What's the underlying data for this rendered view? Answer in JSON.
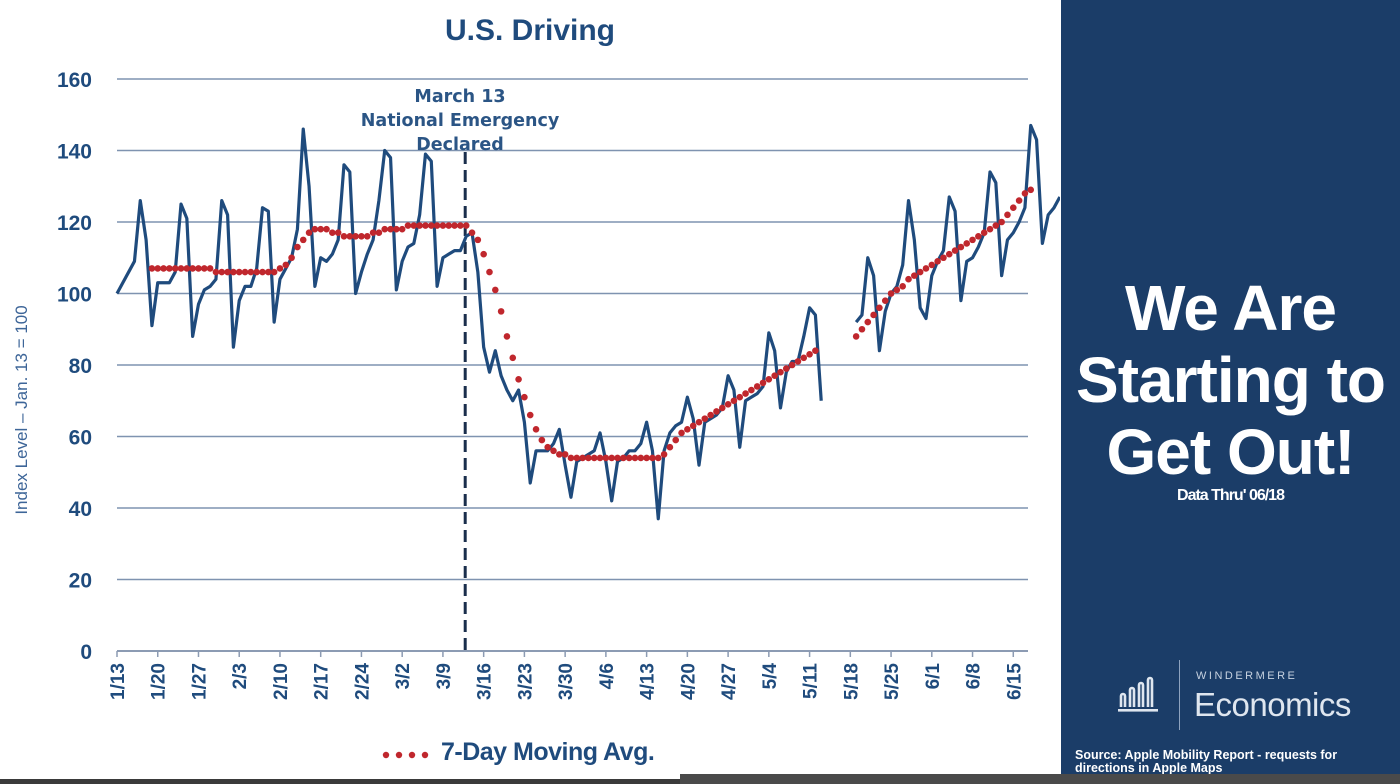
{
  "chart_data": {
    "type": "line",
    "title": "U.S. Driving",
    "xlabel": "",
    "ylabel": "Index Level – Jan. 13 = 100",
    "ylim": [
      0,
      160
    ],
    "yticks": [
      0,
      20,
      40,
      60,
      80,
      100,
      120,
      140,
      160
    ],
    "grid": true,
    "x_start": "1/13",
    "x_end": "6/18",
    "x_tick_labels": [
      "1/13",
      "1/20",
      "1/27",
      "2/3",
      "2/10",
      "2/17",
      "2/24",
      "3/2",
      "3/9",
      "3/16",
      "3/23",
      "3/30",
      "4/6",
      "4/13",
      "4/20",
      "4/27",
      "5/4",
      "5/11",
      "5/18",
      "5/25",
      "6/1",
      "6/8",
      "6/15"
    ],
    "annotation": {
      "label_lines": [
        "March 13",
        "National Emergency",
        "Declared"
      ],
      "x_day_index": 60
    },
    "legend": {
      "position": "bottom-center",
      "entries": [
        {
          "label": "7-Day Moving Avg.",
          "style": "dotted",
          "color": "#c0272d"
        }
      ]
    },
    "series": [
      {
        "name": "Daily Driving Index",
        "color": "#1f4b7d",
        "style": "solid",
        "values": [
          100,
          103,
          106,
          109,
          126,
          115,
          91,
          103,
          103,
          103,
          106,
          125,
          121,
          88,
          97,
          101,
          102,
          104,
          126,
          122,
          85,
          98,
          102,
          102,
          107,
          124,
          123,
          92,
          104,
          107,
          110,
          118,
          146,
          130,
          102,
          110,
          109,
          111,
          115,
          136,
          134,
          100,
          106,
          111,
          115,
          126,
          140,
          138,
          101,
          109,
          113,
          114,
          122,
          139,
          137,
          102,
          110,
          111,
          112,
          112,
          116,
          117,
          106,
          85,
          78,
          84,
          77,
          73,
          70,
          73,
          64,
          47,
          56,
          56,
          56,
          58,
          62,
          52,
          43,
          53,
          54,
          55,
          56,
          61,
          53,
          42,
          53,
          54,
          56,
          56,
          58,
          64,
          56,
          37,
          56,
          61,
          63,
          64,
          71,
          65,
          52,
          64,
          65,
          66,
          68,
          77,
          73,
          57,
          70,
          71,
          72,
          74,
          89,
          84,
          68,
          78,
          81,
          81,
          88,
          96,
          94,
          70,
          null,
          null,
          null,
          null,
          null,
          92,
          94,
          110,
          105,
          84,
          95,
          100,
          102,
          108,
          126,
          115,
          96,
          93,
          105,
          109,
          112,
          127,
          123,
          98,
          109,
          110,
          113,
          117,
          134,
          131,
          105,
          115,
          117,
          120,
          124,
          147,
          143,
          114,
          122,
          124,
          127
        ]
      },
      {
        "name": "7-Day Moving Avg.",
        "color": "#c0272d",
        "style": "dotted",
        "values": [
          null,
          null,
          null,
          null,
          null,
          null,
          107,
          107,
          107,
          107,
          107,
          107,
          107,
          107,
          107,
          107,
          107,
          106,
          106,
          106,
          106,
          106,
          106,
          106,
          106,
          106,
          106,
          106,
          107,
          108,
          110,
          113,
          115,
          117,
          118,
          118,
          118,
          117,
          117,
          116,
          116,
          116,
          116,
          116,
          117,
          117,
          118,
          118,
          118,
          118,
          119,
          119,
          119,
          119,
          119,
          119,
          119,
          119,
          119,
          119,
          119,
          117,
          115,
          111,
          106,
          101,
          95,
          88,
          82,
          76,
          71,
          66,
          62,
          59,
          57,
          56,
          55,
          55,
          54,
          54,
          54,
          54,
          54,
          54,
          54,
          54,
          54,
          54,
          54,
          54,
          54,
          54,
          54,
          54,
          55,
          57,
          59,
          61,
          62,
          63,
          64,
          65,
          66,
          67,
          68,
          69,
          70,
          71,
          72,
          73,
          74,
          75,
          76,
          77,
          78,
          79,
          80,
          81,
          82,
          83,
          84,
          null,
          null,
          null,
          null,
          null,
          null,
          88,
          90,
          92,
          94,
          96,
          98,
          100,
          101,
          102,
          104,
          105,
          106,
          107,
          108,
          109,
          110,
          111,
          112,
          113,
          114,
          115,
          116,
          117,
          118,
          119,
          120,
          122,
          124,
          126,
          128,
          129
        ]
      }
    ]
  },
  "side_panel": {
    "headline_lines": [
      "We Are",
      "Starting to",
      "Get Out!"
    ],
    "subtitle": "Data Thru' 06/18",
    "logo_top": "WINDERMERE",
    "logo_main": "Economics",
    "logo_icon": "bar-chart-icon",
    "source": "Source: Apple Mobility Report - requests for directions in Apple Maps"
  },
  "colors": {
    "primary_navy": "#1f4b7d",
    "panel_navy": "#1b3d68",
    "moving_avg_red": "#c0272d",
    "gridline": "#7f93b0"
  }
}
